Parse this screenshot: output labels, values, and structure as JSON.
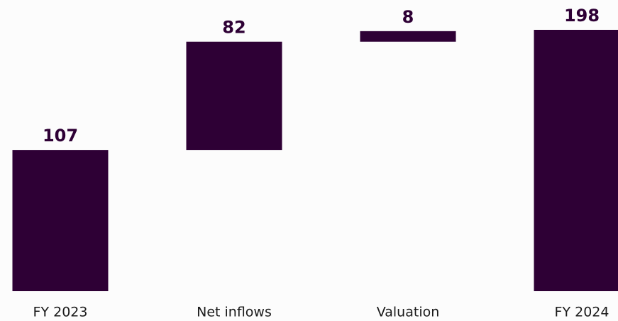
{
  "chart_data": {
    "type": "waterfall",
    "categories": [
      "FY 2023",
      "Net inflows",
      "Valuation",
      "FY 2024"
    ],
    "values": [
      107,
      82,
      8,
      198
    ],
    "totals": [
      true,
      false,
      false,
      true
    ],
    "color": "#2e0035"
  }
}
